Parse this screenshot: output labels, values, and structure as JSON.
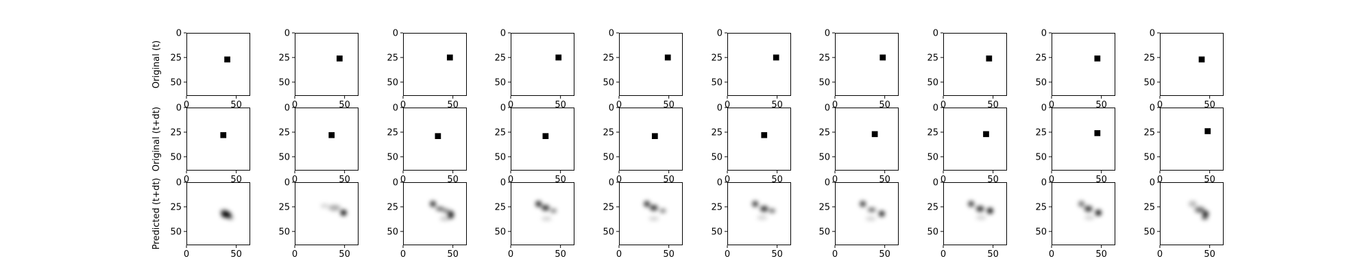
{
  "chart_data": {
    "type": "heatmap",
    "layout": "grid",
    "rows": 3,
    "cols": 10,
    "image_size": [
      64,
      64
    ],
    "xticks": [
      0,
      50
    ],
    "yticks": [
      0,
      25,
      50
    ],
    "xlim": [
      0,
      64
    ],
    "ylim": [
      64,
      0
    ],
    "colormap": "gray_r",
    "row_labels": [
      "Original (t)",
      "Original (t+dt)",
      "Predicted (t+dt)"
    ],
    "original_t_squares": [
      [
        41,
        27
      ],
      [
        45,
        26
      ],
      [
        47,
        25
      ],
      [
        48,
        25
      ],
      [
        49,
        25
      ],
      [
        49,
        25
      ],
      [
        48,
        25
      ],
      [
        46,
        26
      ],
      [
        46,
        26
      ],
      [
        42,
        27
      ]
    ],
    "original_tdt_squares": [
      [
        37,
        28
      ],
      [
        37,
        28
      ],
      [
        35,
        29
      ],
      [
        35,
        29
      ],
      [
        36,
        29
      ],
      [
        37,
        28
      ],
      [
        40,
        27
      ],
      [
        43,
        27
      ],
      [
        46,
        26
      ],
      [
        48,
        24
      ]
    ],
    "square_size": 6,
    "predicted_blobs": [
      [
        [
          40,
          33,
          5,
          3,
          1.0
        ],
        [
          38,
          30,
          4,
          2,
          0.7
        ],
        [
          44,
          36,
          3,
          2,
          0.5
        ]
      ],
      [
        [
          49,
          31,
          3,
          3,
          1.0
        ],
        [
          40,
          26,
          6,
          3,
          0.35
        ],
        [
          30,
          24,
          4,
          2,
          0.2
        ]
      ],
      [
        [
          48,
          33,
          3,
          4,
          0.9
        ],
        [
          30,
          22,
          3,
          3,
          0.85
        ],
        [
          37,
          27,
          4,
          2,
          0.7
        ],
        [
          43,
          29,
          3,
          2,
          0.6
        ],
        [
          42,
          37,
          5,
          2,
          0.25
        ]
      ],
      [
        [
          28,
          22,
          3,
          3,
          0.9
        ],
        [
          35,
          26,
          4,
          3,
          0.8
        ],
        [
          43,
          29,
          3,
          2,
          0.6
        ],
        [
          36,
          37,
          5,
          2,
          0.2
        ]
      ],
      [
        [
          28,
          22,
          3,
          3,
          0.85
        ],
        [
          35,
          26,
          4,
          3,
          0.8
        ],
        [
          44,
          29,
          3,
          2,
          0.6
        ],
        [
          35,
          37,
          5,
          2,
          0.2
        ]
      ],
      [
        [
          28,
          22,
          3,
          3,
          0.8
        ],
        [
          37,
          27,
          4,
          3,
          0.8
        ],
        [
          45,
          29,
          3,
          2,
          0.7
        ],
        [
          35,
          36,
          5,
          2,
          0.2
        ]
      ],
      [
        [
          28,
          22,
          3,
          3,
          0.8
        ],
        [
          37,
          28,
          4,
          2,
          0.7
        ],
        [
          47,
          32,
          3,
          3,
          0.9
        ],
        [
          36,
          37,
          5,
          2,
          0.2
        ]
      ],
      [
        [
          28,
          22,
          3,
          3,
          0.8
        ],
        [
          37,
          27,
          4,
          3,
          0.8
        ],
        [
          47,
          29,
          3,
          3,
          1.0
        ],
        [
          38,
          36,
          5,
          2,
          0.2
        ]
      ],
      [
        [
          30,
          22,
          3,
          3,
          0.6
        ],
        [
          37,
          27,
          4,
          3,
          0.8
        ],
        [
          47,
          31,
          3,
          3,
          1.0
        ],
        [
          38,
          36,
          5,
          2,
          0.2
        ]
      ],
      [
        [
          33,
          22,
          4,
          3,
          0.3
        ],
        [
          40,
          28,
          5,
          3,
          0.6
        ],
        [
          46,
          32,
          3,
          3,
          0.9
        ],
        [
          45,
          36,
          3,
          2,
          0.7
        ]
      ]
    ]
  },
  "colors": {
    "background": "#ffffff",
    "axes": "#000000",
    "marker": "#000000"
  }
}
